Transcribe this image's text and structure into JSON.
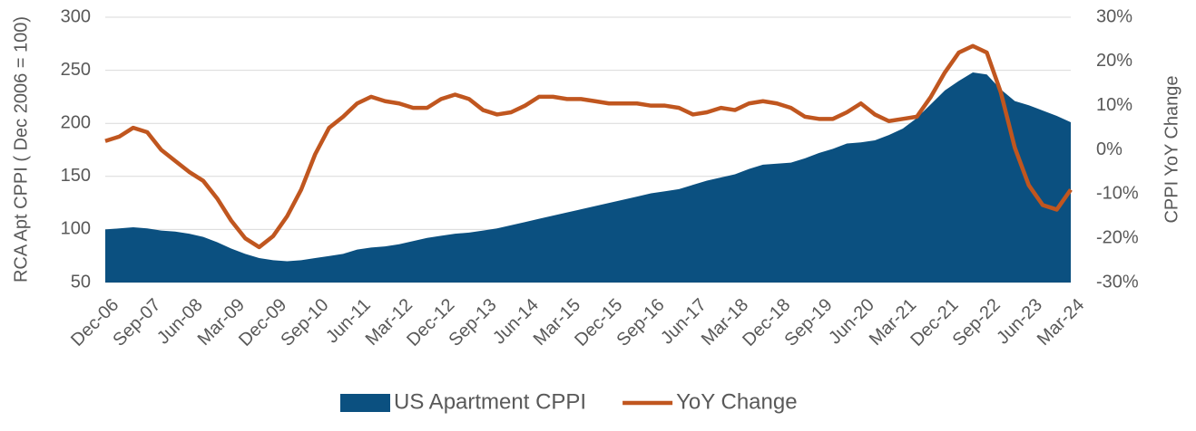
{
  "chart_data": {
    "type": "area-line",
    "y_label": "RCA Apt CPPI ( Dec 2006 = 100)",
    "y2_label": "CPPI YoY Change",
    "categories": [
      "Dec-06",
      null,
      null,
      "Sep-07",
      null,
      null,
      "Jun-08",
      null,
      null,
      "Mar-09",
      null,
      null,
      "Dec-09",
      null,
      null,
      "Sep-10",
      null,
      null,
      "Jun-11",
      null,
      null,
      "Mar-12",
      null,
      null,
      "Dec-12",
      null,
      null,
      "Sep-13",
      null,
      null,
      "Jun-14",
      null,
      null,
      "Mar-15",
      null,
      null,
      "Dec-15",
      null,
      null,
      "Sep-16",
      null,
      null,
      "Jun-17",
      null,
      null,
      "Mar-18",
      null,
      null,
      "Dec-18",
      null,
      null,
      "Sep-19",
      null,
      null,
      "Jun-20",
      null,
      null,
      "Mar-21",
      null,
      null,
      "Dec-21",
      null,
      null,
      "Sep-22",
      null,
      null,
      "Jun-23",
      null,
      null,
      "Mar-24"
    ],
    "series": [
      {
        "name": "US Apartment CPPI",
        "color": "#0b5080",
        "kind": "area",
        "axis": "y",
        "values": [
          100,
          101,
          102,
          101,
          99,
          98,
          96,
          93,
          88,
          82,
          77,
          73,
          71,
          70,
          71,
          73,
          75,
          77,
          81,
          83,
          84,
          86,
          89,
          92,
          94,
          96,
          97,
          99,
          101,
          104,
          107,
          110,
          113,
          116,
          119,
          122,
          125,
          128,
          131,
          134,
          136,
          138,
          142,
          146,
          149,
          152,
          157,
          161,
          162,
          163,
          167,
          172,
          176,
          181,
          182,
          184,
          189,
          195,
          205,
          218,
          231,
          240,
          248,
          246,
          232,
          221,
          217,
          212,
          207,
          201
        ]
      },
      {
        "name": "YoY Change",
        "color": "#c0561f",
        "kind": "line",
        "axis": "y2",
        "values": [
          2,
          3,
          5,
          4,
          0,
          -2.5,
          -5,
          -7,
          -11,
          -16,
          -20,
          -22,
          -19.5,
          -15,
          -9,
          -1,
          5,
          7.5,
          10.5,
          12,
          11,
          10.5,
          9.5,
          9.5,
          11.5,
          12.5,
          11.5,
          9,
          8,
          8.5,
          10,
          12,
          12,
          11.5,
          11.5,
          11,
          10.5,
          10.5,
          10.5,
          10,
          10,
          9.5,
          8,
          8.5,
          9.5,
          9,
          10.5,
          11,
          10.5,
          9.5,
          7.5,
          7,
          7,
          8.5,
          10.5,
          8,
          6.5,
          7,
          7.5,
          12,
          17.5,
          22,
          23.5,
          22,
          13,
          0.5,
          -8,
          -12.5,
          -13.5,
          -9
        ]
      }
    ],
    "ylim": [
      50,
      300
    ],
    "yticks": [
      50,
      100,
      150,
      200,
      250,
      300
    ],
    "y2lim": [
      -30,
      30
    ],
    "y2ticks": [
      {
        "value": -30,
        "label": "-30%"
      },
      {
        "value": -20,
        "label": "-20%"
      },
      {
        "value": -10,
        "label": "-10%"
      },
      {
        "value": 0,
        "label": "0%"
      },
      {
        "value": 10,
        "label": "10%"
      },
      {
        "value": 20,
        "label": "20%"
      },
      {
        "value": 30,
        "label": "30%"
      }
    ],
    "grid": true,
    "legend": "bottom"
  }
}
